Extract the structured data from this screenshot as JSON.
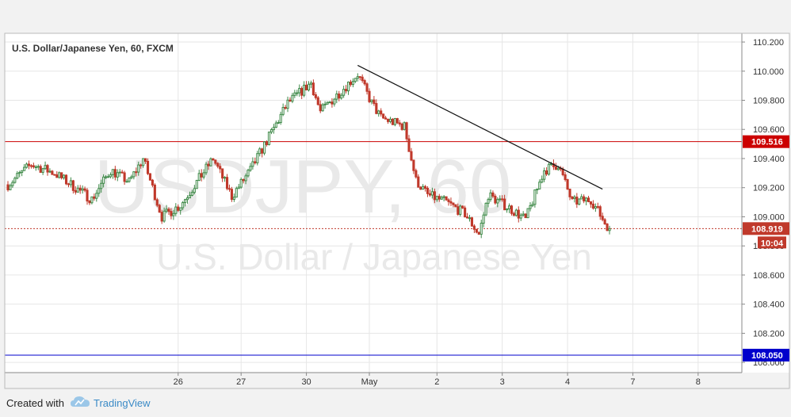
{
  "chart_data": {
    "type": "candlestick",
    "title": "U.S. Dollar/Japanese Yen, 60, FXCM",
    "watermark_symbol": "USDJPY, 60",
    "watermark_name": "U.S. Dollar / Japanese Yen",
    "ylim": [
      107.93,
      110.26
    ],
    "y_ticks": [
      "110.200",
      "110.000",
      "109.800",
      "109.600",
      "109.400",
      "109.200",
      "109.000",
      "108.800",
      "108.600",
      "108.400",
      "108.200",
      "108.000"
    ],
    "x_tick_labels": [
      "26",
      "27",
      "30",
      "May",
      "2",
      "3",
      "4",
      "7",
      "8"
    ],
    "x_tick_bars": [
      73,
      100,
      128,
      155,
      184,
      212,
      240,
      268,
      296
    ],
    "bar_range": [
      0,
      310
    ],
    "grid": true,
    "levels": [
      {
        "value": 109.516,
        "label": "109.516",
        "color": "#cc0000",
        "style": "solid"
      },
      {
        "value": 108.05,
        "label": "108.050",
        "color": "#0000cc",
        "style": "solid"
      },
      {
        "value": 108.919,
        "label": "108.919",
        "color": "#c0392b",
        "style": "dotted"
      }
    ],
    "countdown": "10:04",
    "trendline": {
      "from_bar": 150,
      "from_value": 110.04,
      "to_bar": 255,
      "to_value": 109.19
    },
    "colors": {
      "up": "#3f8a49",
      "down": "#c0392b",
      "up_fill": "#ffffff",
      "grid": "#e6e6e6",
      "axis_text": "#333333"
    },
    "ohlc_anchors": [
      {
        "bar": 0,
        "price": 109.22
      },
      {
        "bar": 10,
        "price": 109.36
      },
      {
        "bar": 20,
        "price": 109.3
      },
      {
        "bar": 36,
        "price": 109.12
      },
      {
        "bar": 44,
        "price": 109.32
      },
      {
        "bar": 52,
        "price": 109.24
      },
      {
        "bar": 58,
        "price": 109.4
      },
      {
        "bar": 66,
        "price": 109.0
      },
      {
        "bar": 74,
        "price": 109.08
      },
      {
        "bar": 88,
        "price": 109.4
      },
      {
        "bar": 96,
        "price": 109.14
      },
      {
        "bar": 104,
        "price": 109.32
      },
      {
        "bar": 112,
        "price": 109.55
      },
      {
        "bar": 120,
        "price": 109.78
      },
      {
        "bar": 130,
        "price": 109.92
      },
      {
        "bar": 134,
        "price": 109.72
      },
      {
        "bar": 142,
        "price": 109.85
      },
      {
        "bar": 150,
        "price": 109.98
      },
      {
        "bar": 156,
        "price": 109.78
      },
      {
        "bar": 160,
        "price": 109.68
      },
      {
        "bar": 170,
        "price": 109.62
      },
      {
        "bar": 175,
        "price": 109.25
      },
      {
        "bar": 180,
        "price": 109.15
      },
      {
        "bar": 188,
        "price": 109.1
      },
      {
        "bar": 196,
        "price": 109.02
      },
      {
        "bar": 202,
        "price": 108.88
      },
      {
        "bar": 206,
        "price": 109.15
      },
      {
        "bar": 216,
        "price": 109.05
      },
      {
        "bar": 222,
        "price": 108.98
      },
      {
        "bar": 230,
        "price": 109.32
      },
      {
        "bar": 236,
        "price": 109.36
      },
      {
        "bar": 242,
        "price": 109.1
      },
      {
        "bar": 250,
        "price": 109.12
      },
      {
        "bar": 256,
        "price": 108.96
      },
      {
        "bar": 258,
        "price": 108.92
      }
    ]
  },
  "footer": {
    "created_with": "Created with",
    "brand": "TradingView"
  }
}
